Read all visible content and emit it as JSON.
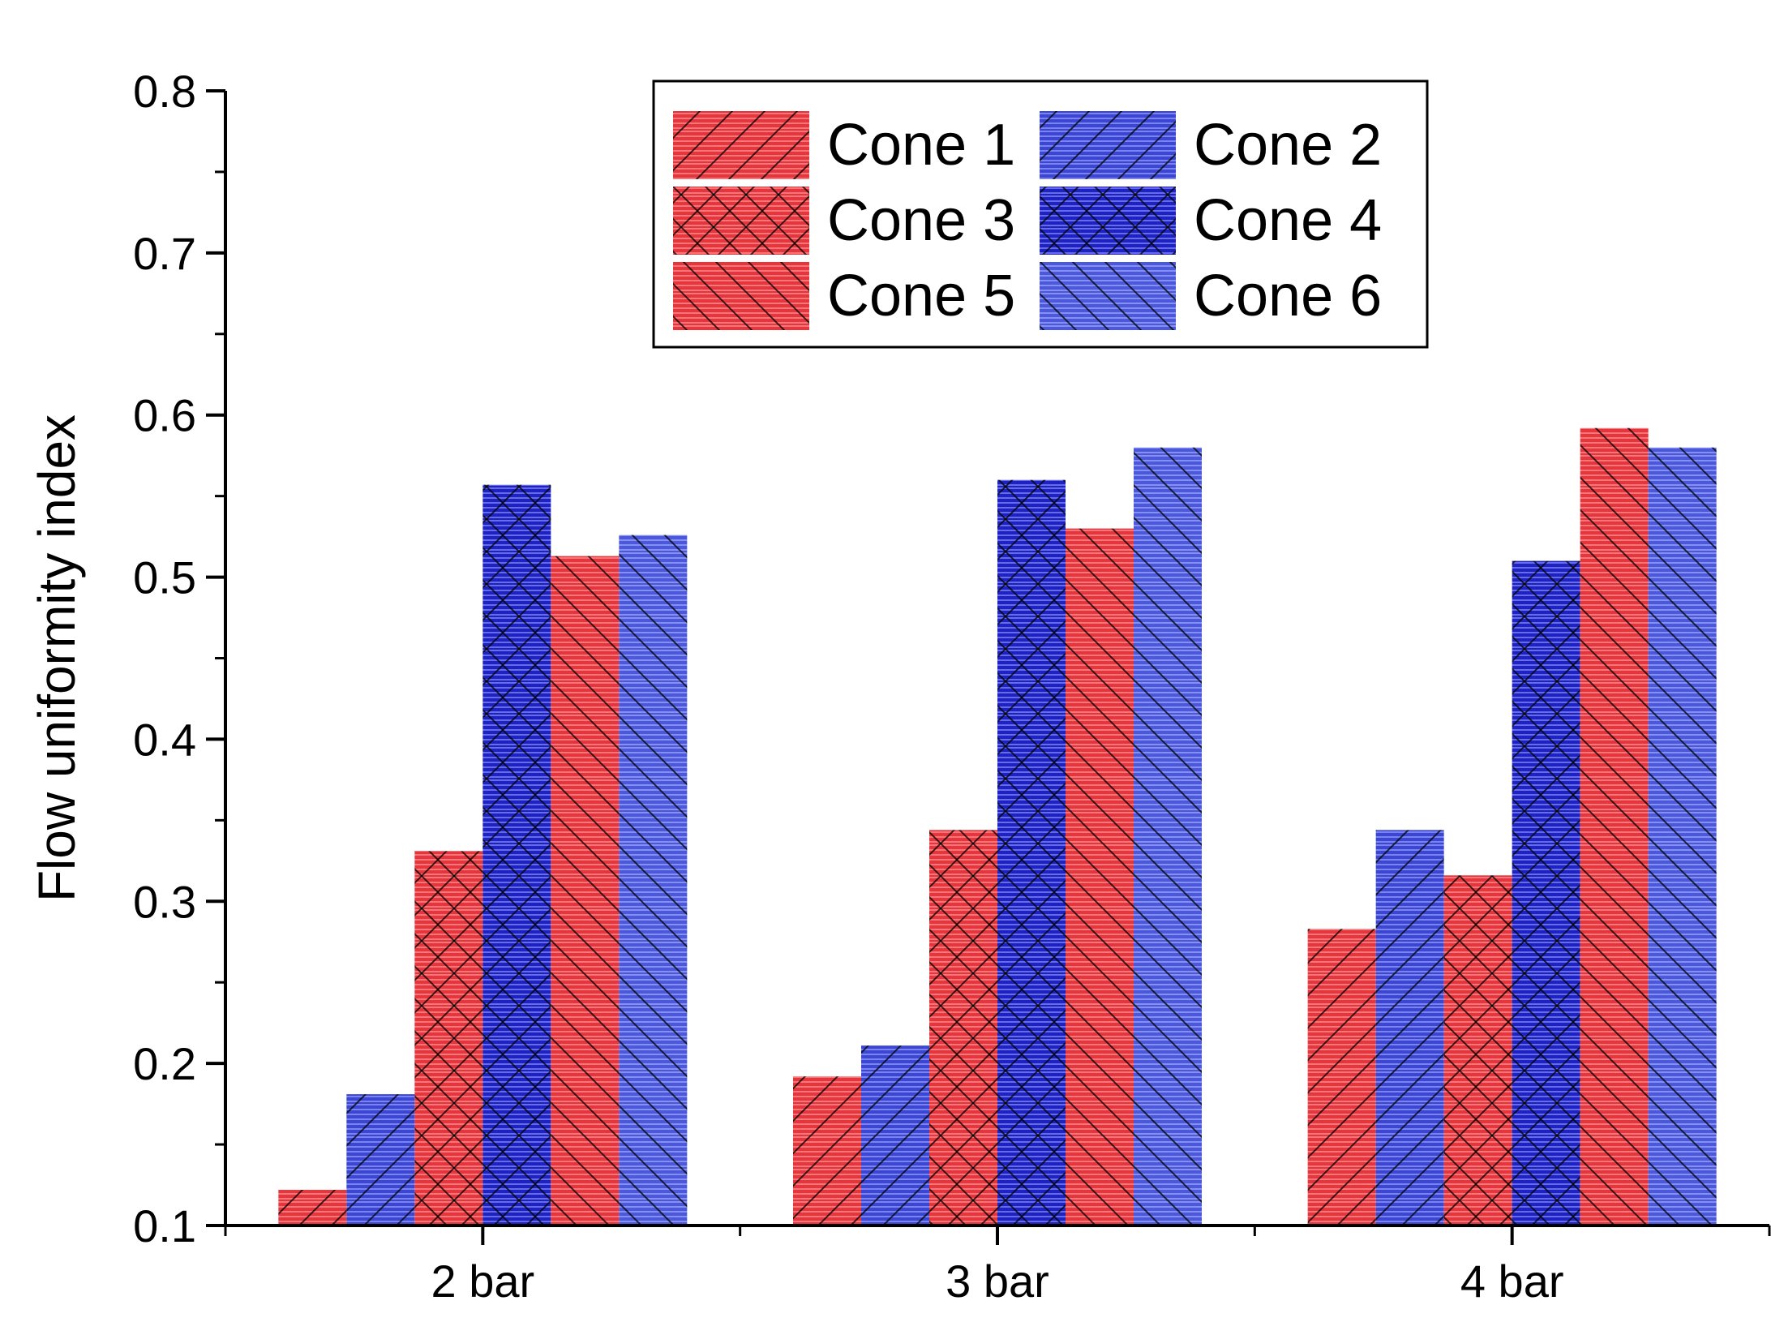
{
  "chart_data": {
    "type": "bar",
    "title": "",
    "xlabel": "",
    "ylabel": "Flow uniformity index",
    "ylim": [
      0.1,
      0.8
    ],
    "yticks": [
      "0.1",
      "0.2",
      "0.3",
      "0.4",
      "0.5",
      "0.6",
      "0.7",
      "0.8"
    ],
    "categories": [
      "2 bar",
      "3 bar",
      "4 bar"
    ],
    "grid": false,
    "legend_position": "top-center",
    "series": [
      {
        "name": "Cone 1",
        "color": "#e8343a",
        "pattern": "forward",
        "values": [
          0.122,
          0.192,
          0.283
        ]
      },
      {
        "name": "Cone 2",
        "color": "#3a46d8",
        "pattern": "forward",
        "values": [
          0.181,
          0.211,
          0.344
        ]
      },
      {
        "name": "Cone 3",
        "color": "#e8343a",
        "pattern": "cross",
        "values": [
          0.331,
          0.344,
          0.316
        ]
      },
      {
        "name": "Cone 4",
        "color": "#1c22c8",
        "pattern": "cross",
        "values": [
          0.557,
          0.56,
          0.51
        ]
      },
      {
        "name": "Cone 5",
        "color": "#e8343a",
        "pattern": "back",
        "values": [
          0.513,
          0.53,
          0.592
        ]
      },
      {
        "name": "Cone 6",
        "color": "#4a58e0",
        "pattern": "back",
        "values": [
          0.526,
          0.58,
          0.58
        ]
      }
    ]
  }
}
